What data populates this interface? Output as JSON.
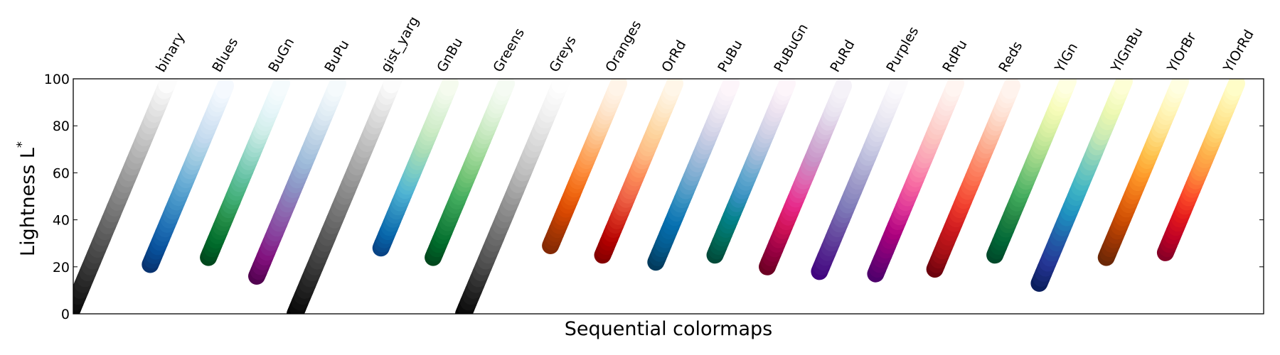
{
  "chart_data": {
    "type": "scatter",
    "title": "",
    "xlabel": "Sequential colormaps",
    "ylabel": "Lightness L",
    "ylabel_superscript": "*",
    "ylim": [
      0,
      100
    ],
    "yticks": [
      0,
      20,
      40,
      60,
      80,
      100
    ],
    "grid": false,
    "legend": "none",
    "series": [
      {
        "name": "binary",
        "start_color": "#000000",
        "end_color": "#ffffff",
        "lightness_min": 0,
        "lightness_max": 100,
        "stops": [
          "#000000",
          "#ffffff"
        ]
      },
      {
        "name": "Blues",
        "start_color": "#08306b",
        "end_color": "#f7fbff",
        "lightness_min": 21,
        "lightness_max": 97,
        "stops": [
          "#08306b",
          "#08519c",
          "#2171b5",
          "#4292c6",
          "#6baed6",
          "#9ecae1",
          "#c6dbef",
          "#deebf7",
          "#f7fbff"
        ]
      },
      {
        "name": "BuGn",
        "start_color": "#00441b",
        "end_color": "#f7fcfd",
        "lightness_min": 24,
        "lightness_max": 98,
        "stops": [
          "#00441b",
          "#006d2c",
          "#238b45",
          "#41ae76",
          "#66c2a4",
          "#99d8c9",
          "#ccece6",
          "#e5f5f9",
          "#f7fcfd"
        ]
      },
      {
        "name": "BuPu",
        "start_color": "#4d004b",
        "end_color": "#f7fcfd",
        "lightness_min": 16,
        "lightness_max": 98,
        "stops": [
          "#4d004b",
          "#810f7c",
          "#88419d",
          "#8c6bb1",
          "#8c96c6",
          "#9ebcda",
          "#bfd3e6",
          "#e0ecf4",
          "#f7fcfd"
        ]
      },
      {
        "name": "gist_yarg",
        "start_color": "#000000",
        "end_color": "#ffffff",
        "lightness_min": 0,
        "lightness_max": 100,
        "stops": [
          "#000000",
          "#ffffff"
        ]
      },
      {
        "name": "GnBu",
        "start_color": "#084081",
        "end_color": "#f7fcf0",
        "lightness_min": 28,
        "lightness_max": 98,
        "stops": [
          "#084081",
          "#0868ac",
          "#2b8cbe",
          "#4eb3d3",
          "#7bccc4",
          "#a8ddb5",
          "#ccebc5",
          "#e0f3db",
          "#f7fcf0"
        ]
      },
      {
        "name": "Greens",
        "start_color": "#00441b",
        "end_color": "#f7fcf5",
        "lightness_min": 24,
        "lightness_max": 98,
        "stops": [
          "#00441b",
          "#006d2c",
          "#238b45",
          "#41ab5d",
          "#74c476",
          "#a1d99b",
          "#c7e9c0",
          "#e5f5e0",
          "#f7fcf5"
        ]
      },
      {
        "name": "Greys",
        "start_color": "#000000",
        "end_color": "#ffffff",
        "lightness_min": 0,
        "lightness_max": 100,
        "stops": [
          "#000000",
          "#252525",
          "#525252",
          "#737373",
          "#969696",
          "#bdbdbd",
          "#d9d9d9",
          "#f0f0f0",
          "#ffffff"
        ]
      },
      {
        "name": "Oranges",
        "start_color": "#7f2704",
        "end_color": "#fff5eb",
        "lightness_min": 29,
        "lightness_max": 98,
        "stops": [
          "#7f2704",
          "#a63603",
          "#d94801",
          "#f16913",
          "#fd8d3c",
          "#fdae6b",
          "#fdd0a2",
          "#fee6ce",
          "#fff5eb"
        ]
      },
      {
        "name": "OrRd",
        "start_color": "#7f0000",
        "end_color": "#fff7ec",
        "lightness_min": 25,
        "lightness_max": 98,
        "stops": [
          "#7f0000",
          "#b30000",
          "#d7301f",
          "#ef6548",
          "#fc8d59",
          "#fdbb84",
          "#fdd49e",
          "#fee8c8",
          "#fff7ec"
        ]
      },
      {
        "name": "PuBu",
        "start_color": "#023858",
        "end_color": "#fff7fb",
        "lightness_min": 22,
        "lightness_max": 98,
        "stops": [
          "#023858",
          "#045a8d",
          "#0570b0",
          "#3690c0",
          "#74a9cf",
          "#a6bddb",
          "#d0d1e6",
          "#ece7f2",
          "#fff7fb"
        ]
      },
      {
        "name": "PuBuGn",
        "start_color": "#014636",
        "end_color": "#fff7fb",
        "lightness_min": 25,
        "lightness_max": 98,
        "stops": [
          "#014636",
          "#016c59",
          "#02818a",
          "#3690c0",
          "#67a9cf",
          "#a6bddb",
          "#d0d1e6",
          "#ece2f0",
          "#fff7fb"
        ]
      },
      {
        "name": "PuRd",
        "start_color": "#67001f",
        "end_color": "#f7f4f9",
        "lightness_min": 20,
        "lightness_max": 97,
        "stops": [
          "#67001f",
          "#980043",
          "#ce1256",
          "#e7298a",
          "#df65b0",
          "#c994c7",
          "#d4b9da",
          "#e7e1ef",
          "#f7f4f9"
        ]
      },
      {
        "name": "Purples",
        "start_color": "#3f007d",
        "end_color": "#fcfbfd",
        "lightness_min": 18,
        "lightness_max": 99,
        "stops": [
          "#3f007d",
          "#54278f",
          "#6a51a3",
          "#807dba",
          "#9e9ac8",
          "#bcbddc",
          "#dadaeb",
          "#efedf5",
          "#fcfbfd"
        ]
      },
      {
        "name": "RdPu",
        "start_color": "#49006a",
        "end_color": "#fff7f3",
        "lightness_min": 17,
        "lightness_max": 98,
        "stops": [
          "#49006a",
          "#7a0177",
          "#ae017e",
          "#dd3497",
          "#f768a1",
          "#fa9fb5",
          "#fcc5c0",
          "#fde0dd",
          "#fff7f3"
        ]
      },
      {
        "name": "Reds",
        "start_color": "#67000d",
        "end_color": "#fff5f0",
        "lightness_min": 19,
        "lightness_max": 97,
        "stops": [
          "#67000d",
          "#a50f15",
          "#cb181d",
          "#ef3b2c",
          "#fb6a4a",
          "#fc9272",
          "#fcbba1",
          "#fee0d2",
          "#fff5f0"
        ]
      },
      {
        "name": "YlGn",
        "start_color": "#004529",
        "end_color": "#ffffe5",
        "lightness_min": 25,
        "lightness_max": 99,
        "stops": [
          "#004529",
          "#006837",
          "#238443",
          "#41ab5d",
          "#78c679",
          "#addd8e",
          "#d9f0a3",
          "#f7fcb9",
          "#ffffe5"
        ]
      },
      {
        "name": "YlGnBu",
        "start_color": "#081d58",
        "end_color": "#ffffd9",
        "lightness_min": 13,
        "lightness_max": 99,
        "stops": [
          "#081d58",
          "#253494",
          "#225ea8",
          "#1d91c0",
          "#41b6c4",
          "#7fcdbb",
          "#c7e9b4",
          "#edf8b1",
          "#ffffd9"
        ]
      },
      {
        "name": "YlOrBr",
        "start_color": "#662506",
        "end_color": "#ffffe5",
        "lightness_min": 24,
        "lightness_max": 99,
        "stops": [
          "#662506",
          "#993404",
          "#cc4c02",
          "#ec7014",
          "#fe9929",
          "#fec44f",
          "#fee391",
          "#fff7bc",
          "#ffffe5"
        ]
      },
      {
        "name": "YlOrRd",
        "start_color": "#800026",
        "end_color": "#ffffcc",
        "lightness_min": 26,
        "lightness_max": 98,
        "stops": [
          "#800026",
          "#bd0026",
          "#e31a1c",
          "#fc4e2a",
          "#fd8d3c",
          "#feb24c",
          "#fed976",
          "#ffeda0",
          "#ffffcc"
        ]
      }
    ]
  }
}
